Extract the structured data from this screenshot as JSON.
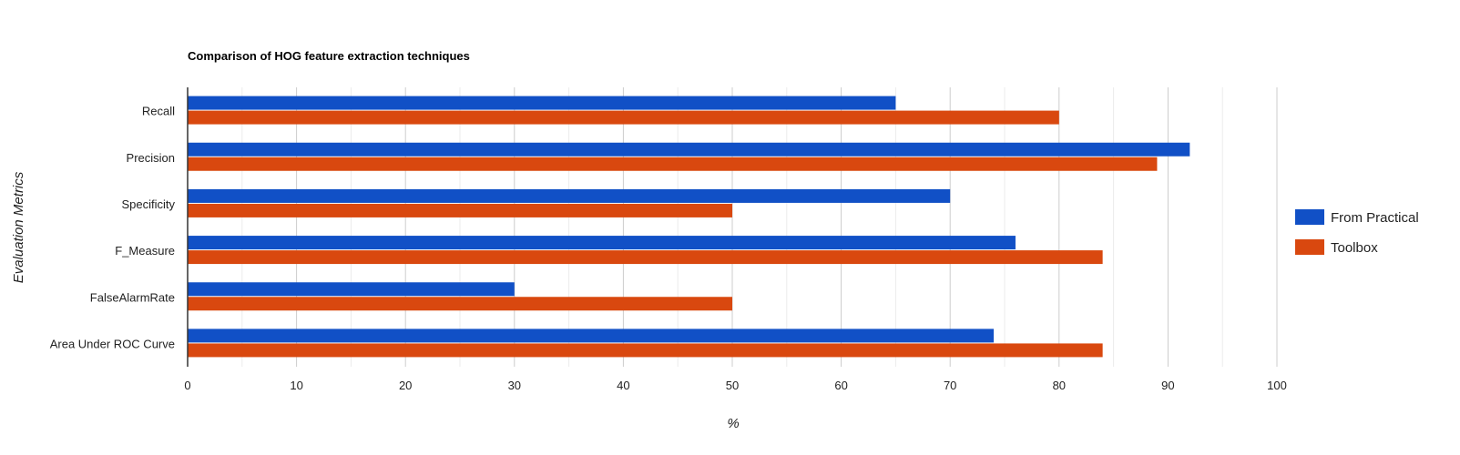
{
  "chart_data": {
    "type": "bar",
    "orientation": "horizontal",
    "title": "Comparison of HOG feature extraction techniques",
    "xlabel": "%",
    "ylabel": "Evaluation Metrics",
    "categories": [
      "Recall",
      "Precision",
      "Specificity",
      "F_Measure",
      "FalseAlarmRate",
      "Area Under ROC Curve"
    ],
    "series": [
      {
        "name": "From Practical",
        "color": "#1150c6",
        "values": [
          65,
          92,
          70,
          76,
          30,
          74
        ]
      },
      {
        "name": "Toolbox",
        "color": "#d9480f",
        "values": [
          80,
          89,
          50,
          84,
          50,
          84
        ]
      }
    ],
    "xlim": [
      0,
      100
    ],
    "xticks": [
      0,
      10,
      20,
      30,
      40,
      50,
      60,
      70,
      80,
      90,
      100
    ],
    "grid": true,
    "legend_position": "right"
  }
}
